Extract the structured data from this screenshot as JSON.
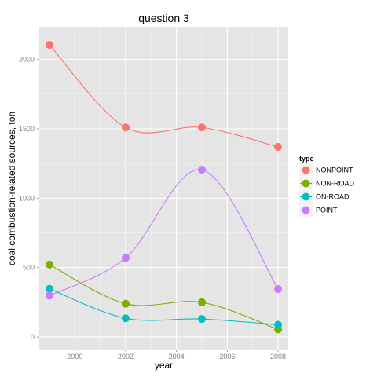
{
  "chart_data": {
    "type": "line",
    "title": "question 3",
    "xlabel": "year",
    "ylabel": "coal combustion-related sources, ton",
    "x": [
      1999,
      2002,
      2005,
      2008
    ],
    "xlim": [
      1998.6,
      2008.4
    ],
    "ylim": [
      -90,
      2230
    ],
    "xticks": [
      2000,
      2002,
      2004,
      2006,
      2008
    ],
    "yticks": [
      0,
      500,
      1000,
      1500,
      2000
    ],
    "grid": true,
    "smooth": true,
    "legend": {
      "title": "type",
      "position": "right"
    },
    "series": [
      {
        "name": "NONPOINT",
        "color": "#f8766d",
        "values": [
          2105,
          1510,
          1510,
          1370
        ]
      },
      {
        "name": "NON-ROAD",
        "color": "#7cae00",
        "values": [
          522,
          240,
          250,
          55
        ]
      },
      {
        "name": "ON-ROAD",
        "color": "#00bfc4",
        "values": [
          347,
          135,
          130,
          88
        ]
      },
      {
        "name": "POINT",
        "color": "#c77cff",
        "values": [
          298,
          570,
          1205,
          345
        ]
      }
    ]
  }
}
